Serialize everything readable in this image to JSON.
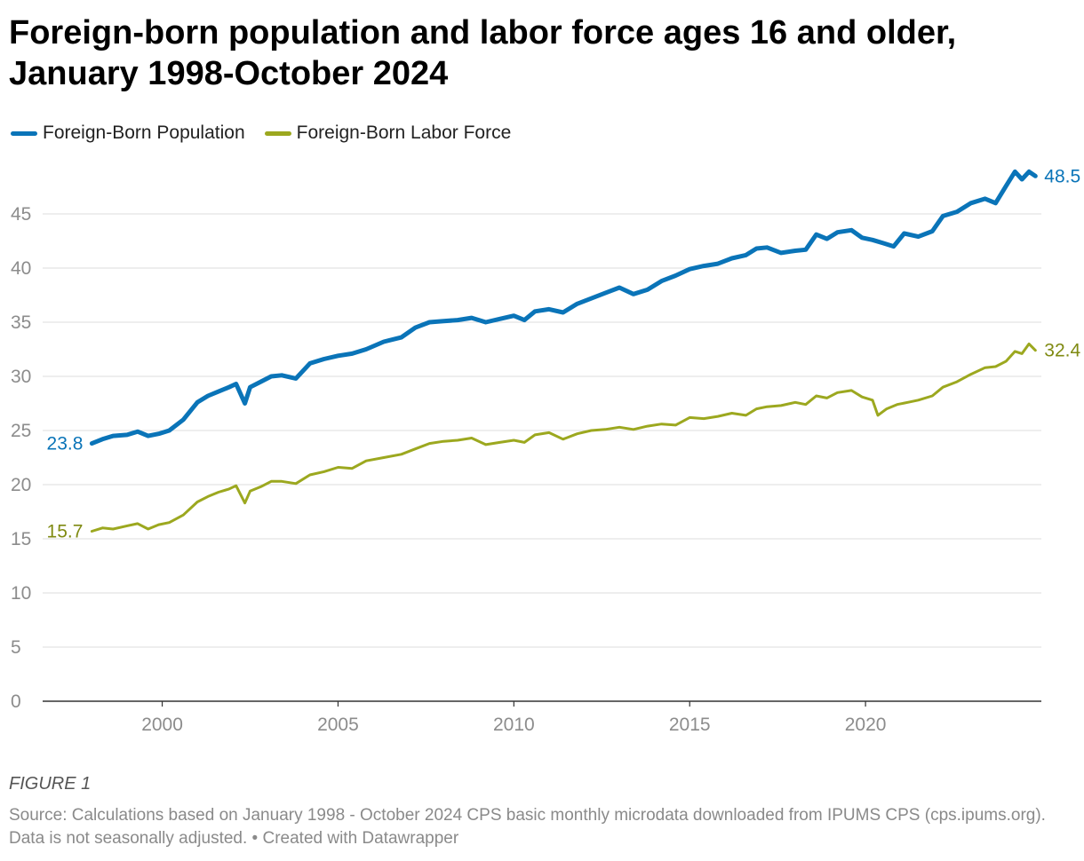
{
  "title": "Foreign-born population and labor force ages 16 and older, January 1998-October 2024",
  "figure_label": "FIGURE 1",
  "source": "Source: Calculations based on January 1998 - October 2024 CPS basic monthly microdata downloaded from IPUMS CPS (cps.ipums.org). Data is not seasonally adjusted. • Created with Datawrapper",
  "colors": {
    "population": "#0a74b8",
    "labor_force": "#9ca81f",
    "gridline": "#dddddd",
    "axis": "#333333",
    "tick_text": "#8c8c8c",
    "population_label": "#0a74b8",
    "labor_force_label": "#7f8a12"
  },
  "chart_data": {
    "type": "line",
    "title": "Foreign-born population and labor force ages 16 and older, January 1998-October 2024",
    "xlabel": "",
    "ylabel": "",
    "xlim": [
      1996.6,
      2025.0
    ],
    "ylim": [
      0,
      50
    ],
    "x_ticks": [
      2000,
      2005,
      2010,
      2015,
      2020
    ],
    "y_ticks": [
      0,
      5,
      10,
      15,
      20,
      25,
      30,
      35,
      40,
      45
    ],
    "grid": true,
    "legend_position": "top-left",
    "series": [
      {
        "name": "Foreign-Born Population",
        "color_key": "population",
        "start_label": "23.8",
        "end_label": "48.5",
        "points": [
          [
            1998.0,
            23.8
          ],
          [
            1998.3,
            24.2
          ],
          [
            1998.6,
            24.5
          ],
          [
            1999.0,
            24.6
          ],
          [
            1999.3,
            24.9
          ],
          [
            1999.6,
            24.5
          ],
          [
            1999.9,
            24.7
          ],
          [
            2000.2,
            25.0
          ],
          [
            2000.6,
            26.0
          ],
          [
            2001.0,
            27.6
          ],
          [
            2001.3,
            28.2
          ],
          [
            2001.6,
            28.6
          ],
          [
            2001.9,
            29.0
          ],
          [
            2002.1,
            29.3
          ],
          [
            2002.35,
            27.5
          ],
          [
            2002.5,
            29.0
          ],
          [
            2002.8,
            29.5
          ],
          [
            2003.1,
            30.0
          ],
          [
            2003.4,
            30.1
          ],
          [
            2003.8,
            29.8
          ],
          [
            2004.2,
            31.2
          ],
          [
            2004.6,
            31.6
          ],
          [
            2005.0,
            31.9
          ],
          [
            2005.4,
            32.1
          ],
          [
            2005.8,
            32.5
          ],
          [
            2006.3,
            33.2
          ],
          [
            2006.8,
            33.6
          ],
          [
            2007.2,
            34.5
          ],
          [
            2007.6,
            35.0
          ],
          [
            2008.0,
            35.1
          ],
          [
            2008.4,
            35.2
          ],
          [
            2008.8,
            35.4
          ],
          [
            2009.2,
            35.0
          ],
          [
            2009.6,
            35.3
          ],
          [
            2010.0,
            35.6
          ],
          [
            2010.3,
            35.2
          ],
          [
            2010.6,
            36.0
          ],
          [
            2011.0,
            36.2
          ],
          [
            2011.4,
            35.9
          ],
          [
            2011.8,
            36.7
          ],
          [
            2012.2,
            37.2
          ],
          [
            2012.6,
            37.7
          ],
          [
            2013.0,
            38.2
          ],
          [
            2013.4,
            37.6
          ],
          [
            2013.8,
            38.0
          ],
          [
            2014.2,
            38.8
          ],
          [
            2014.6,
            39.3
          ],
          [
            2015.0,
            39.9
          ],
          [
            2015.4,
            40.2
          ],
          [
            2015.8,
            40.4
          ],
          [
            2016.2,
            40.9
          ],
          [
            2016.6,
            41.2
          ],
          [
            2016.9,
            41.8
          ],
          [
            2017.2,
            41.9
          ],
          [
            2017.6,
            41.4
          ],
          [
            2018.0,
            41.6
          ],
          [
            2018.3,
            41.7
          ],
          [
            2018.6,
            43.1
          ],
          [
            2018.9,
            42.7
          ],
          [
            2019.2,
            43.3
          ],
          [
            2019.6,
            43.5
          ],
          [
            2019.9,
            42.8
          ],
          [
            2020.2,
            42.6
          ],
          [
            2020.5,
            42.3
          ],
          [
            2020.8,
            42.0
          ],
          [
            2021.1,
            43.2
          ],
          [
            2021.5,
            42.9
          ],
          [
            2021.9,
            43.4
          ],
          [
            2022.2,
            44.8
          ],
          [
            2022.6,
            45.2
          ],
          [
            2023.0,
            46.0
          ],
          [
            2023.4,
            46.4
          ],
          [
            2023.7,
            46.0
          ],
          [
            2024.0,
            47.6
          ],
          [
            2024.25,
            48.9
          ],
          [
            2024.45,
            48.2
          ],
          [
            2024.65,
            48.9
          ],
          [
            2024.83,
            48.5
          ]
        ]
      },
      {
        "name": "Foreign-Born Labor Force",
        "color_key": "labor_force",
        "start_label": "15.7",
        "end_label": "32.4",
        "points": [
          [
            1998.0,
            15.7
          ],
          [
            1998.3,
            16.0
          ],
          [
            1998.6,
            15.9
          ],
          [
            1999.0,
            16.2
          ],
          [
            1999.3,
            16.4
          ],
          [
            1999.6,
            15.9
          ],
          [
            1999.9,
            16.3
          ],
          [
            2000.2,
            16.5
          ],
          [
            2000.6,
            17.2
          ],
          [
            2001.0,
            18.4
          ],
          [
            2001.3,
            18.9
          ],
          [
            2001.6,
            19.3
          ],
          [
            2001.9,
            19.6
          ],
          [
            2002.1,
            19.9
          ],
          [
            2002.35,
            18.3
          ],
          [
            2002.5,
            19.4
          ],
          [
            2002.8,
            19.8
          ],
          [
            2003.1,
            20.3
          ],
          [
            2003.4,
            20.3
          ],
          [
            2003.8,
            20.1
          ],
          [
            2004.2,
            20.9
          ],
          [
            2004.6,
            21.2
          ],
          [
            2005.0,
            21.6
          ],
          [
            2005.4,
            21.5
          ],
          [
            2005.8,
            22.2
          ],
          [
            2006.3,
            22.5
          ],
          [
            2006.8,
            22.8
          ],
          [
            2007.2,
            23.3
          ],
          [
            2007.6,
            23.8
          ],
          [
            2008.0,
            24.0
          ],
          [
            2008.4,
            24.1
          ],
          [
            2008.8,
            24.3
          ],
          [
            2009.2,
            23.7
          ],
          [
            2009.6,
            23.9
          ],
          [
            2010.0,
            24.1
          ],
          [
            2010.3,
            23.9
          ],
          [
            2010.6,
            24.6
          ],
          [
            2011.0,
            24.8
          ],
          [
            2011.4,
            24.2
          ],
          [
            2011.8,
            24.7
          ],
          [
            2012.2,
            25.0
          ],
          [
            2012.6,
            25.1
          ],
          [
            2013.0,
            25.3
          ],
          [
            2013.4,
            25.1
          ],
          [
            2013.8,
            25.4
          ],
          [
            2014.2,
            25.6
          ],
          [
            2014.6,
            25.5
          ],
          [
            2015.0,
            26.2
          ],
          [
            2015.4,
            26.1
          ],
          [
            2015.8,
            26.3
          ],
          [
            2016.2,
            26.6
          ],
          [
            2016.6,
            26.4
          ],
          [
            2016.9,
            27.0
          ],
          [
            2017.2,
            27.2
          ],
          [
            2017.6,
            27.3
          ],
          [
            2018.0,
            27.6
          ],
          [
            2018.3,
            27.4
          ],
          [
            2018.6,
            28.2
          ],
          [
            2018.9,
            28.0
          ],
          [
            2019.2,
            28.5
          ],
          [
            2019.6,
            28.7
          ],
          [
            2019.9,
            28.1
          ],
          [
            2020.2,
            27.8
          ],
          [
            2020.35,
            26.4
          ],
          [
            2020.6,
            27.0
          ],
          [
            2020.9,
            27.4
          ],
          [
            2021.2,
            27.6
          ],
          [
            2021.5,
            27.8
          ],
          [
            2021.9,
            28.2
          ],
          [
            2022.2,
            29.0
          ],
          [
            2022.6,
            29.5
          ],
          [
            2023.0,
            30.2
          ],
          [
            2023.4,
            30.8
          ],
          [
            2023.7,
            30.9
          ],
          [
            2024.0,
            31.4
          ],
          [
            2024.25,
            32.3
          ],
          [
            2024.45,
            32.1
          ],
          [
            2024.65,
            33.0
          ],
          [
            2024.83,
            32.4
          ]
        ]
      }
    ]
  }
}
